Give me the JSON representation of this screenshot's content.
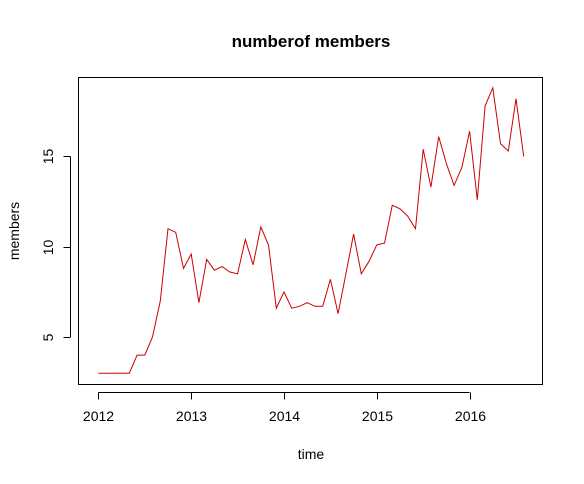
{
  "chart_data": {
    "type": "line",
    "title": "numberof members",
    "xlabel": "time",
    "ylabel": "members",
    "xlim": [
      2011.78,
      2016.78
    ],
    "ylim": [
      2.4,
      19.4
    ],
    "x_ticks": [
      2012,
      2013,
      2014,
      2015,
      2016
    ],
    "y_ticks": [
      5,
      10,
      15
    ],
    "grid": false,
    "line_color": "#cc0000",
    "series": [
      {
        "x": [
          2012.0,
          2012.083,
          2012.167,
          2012.25,
          2012.333,
          2012.417,
          2012.5,
          2012.583,
          2012.667,
          2012.75,
          2012.833,
          2012.917,
          2013.0,
          2013.083,
          2013.167,
          2013.25,
          2013.333,
          2013.417,
          2013.5,
          2013.583,
          2013.667,
          2013.75,
          2013.833,
          2013.917,
          2014.0,
          2014.083,
          2014.167,
          2014.25,
          2014.333,
          2014.417,
          2014.5,
          2014.583,
          2014.667,
          2014.75,
          2014.833,
          2014.917,
          2015.0,
          2015.083,
          2015.167,
          2015.25,
          2015.333,
          2015.417,
          2015.5,
          2015.583,
          2015.667,
          2015.75,
          2015.833,
          2015.917,
          2016.0,
          2016.083,
          2016.167,
          2016.25,
          2016.333,
          2016.417,
          2016.5,
          2016.583
        ],
        "values": [
          3.0,
          3.0,
          3.0,
          3.0,
          3.0,
          4.0,
          4.0,
          5.0,
          7.0,
          11.0,
          10.8,
          8.8,
          9.6,
          6.9,
          9.3,
          8.7,
          8.9,
          8.6,
          8.5,
          10.4,
          9.0,
          11.1,
          10.1,
          6.6,
          7.5,
          6.6,
          6.7,
          6.9,
          6.7,
          6.7,
          8.2,
          6.3,
          8.5,
          10.7,
          8.5,
          9.2,
          10.1,
          10.2,
          12.3,
          12.1,
          11.7,
          11.0,
          15.4,
          13.3,
          16.1,
          14.6,
          13.4,
          14.4,
          16.4,
          12.6,
          17.8,
          18.8,
          15.7,
          15.3,
          18.2,
          15.0
        ]
      }
    ]
  }
}
